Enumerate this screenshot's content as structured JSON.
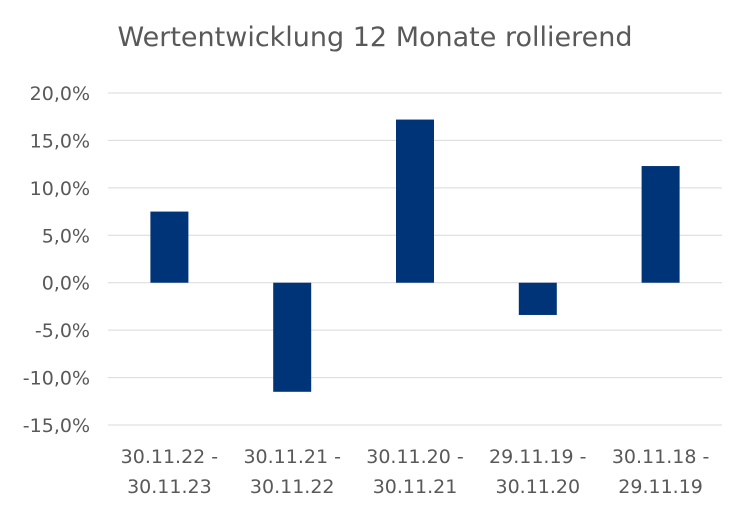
{
  "chart_data": {
    "type": "bar",
    "title": "Wertentwicklung 12 Monate rollierend",
    "categories": [
      [
        "30.11.22 -",
        "30.11.23"
      ],
      [
        "30.11.21 -",
        "30.11.22"
      ],
      [
        "30.11.20 -",
        "30.11.21"
      ],
      [
        "29.11.19 -",
        "30.11.20"
      ],
      [
        "30.11.18 -",
        "29.11.19"
      ]
    ],
    "values": [
      7.5,
      -11.5,
      17.2,
      -3.4,
      12.3
    ],
    "ylim": [
      -15,
      20
    ],
    "yticks": [
      20,
      15,
      10,
      5,
      0,
      -5,
      -10,
      -15
    ],
    "ytick_labels": [
      "20,0%",
      "15,0%",
      "10,0%",
      "5,0%",
      "0,0%",
      "-5,0%",
      "-10,0%",
      "-15,0%"
    ],
    "grid": true,
    "legend": "none",
    "colors": {
      "bar": "#003479",
      "grid": "#d9d9d9",
      "text": "#595959"
    }
  }
}
